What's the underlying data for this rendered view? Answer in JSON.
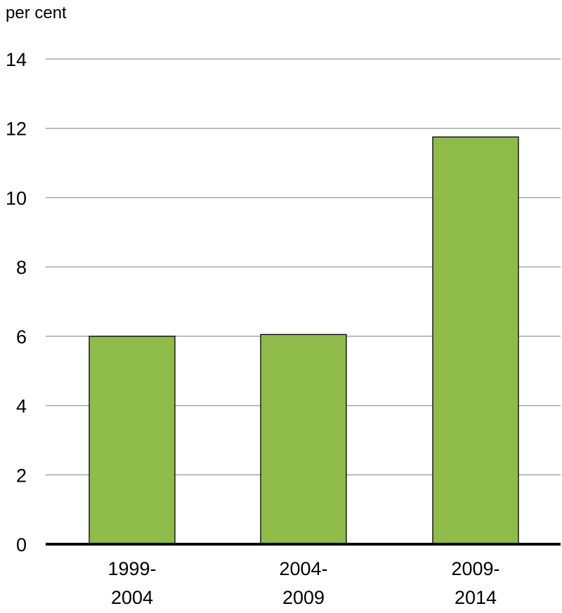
{
  "chart_data": {
    "type": "bar",
    "unit_label": "per cent",
    "categories": [
      [
        "1999-",
        "2004"
      ],
      [
        "2004-",
        "2009"
      ],
      [
        "2009-",
        "2014"
      ]
    ],
    "values": [
      6.0,
      6.05,
      11.75
    ],
    "ylim": [
      0,
      14
    ],
    "yticks": [
      "0",
      "2",
      "4",
      "6",
      "8",
      "10",
      "12",
      "14"
    ],
    "grid": true,
    "bar_color": "#8fbb4b",
    "bar_outline_color": "#000000",
    "grid_color": "#a6a6a6"
  }
}
